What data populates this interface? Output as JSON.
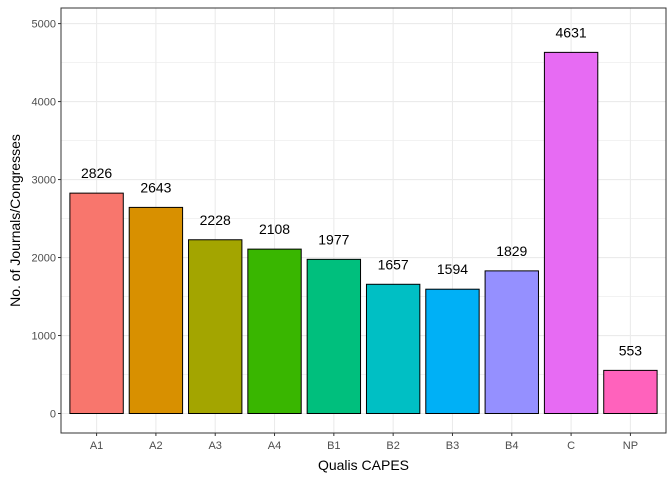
{
  "chart_data": {
    "type": "bar",
    "categories": [
      "A1",
      "A2",
      "A3",
      "A4",
      "B1",
      "B2",
      "B3",
      "B4",
      "C",
      "NP"
    ],
    "values": [
      2826,
      2643,
      2228,
      2108,
      1977,
      1657,
      1594,
      1829,
      4631,
      553
    ],
    "data_labels": [
      "2826",
      "2643",
      "2228",
      "2108",
      "1977",
      "1657",
      "1594",
      "1829",
      "4631",
      "553"
    ],
    "colors": [
      "#F8766D",
      "#D89000",
      "#A3A500",
      "#39B600",
      "#00BF7D",
      "#00BFC4",
      "#00B0F6",
      "#9590FF",
      "#E76BF3",
      "#FF62BC"
    ],
    "xlabel": "Qualis CAPES",
    "ylabel": "No. of Journals/Congresses",
    "y_ticks": [
      0,
      1000,
      2000,
      3000,
      4000,
      5000
    ],
    "y_tick_labels": [
      "0",
      "1000",
      "2000",
      "3000",
      "4000",
      "5000"
    ],
    "ylim": [
      -250,
      5200
    ],
    "grid": true,
    "legend": "none",
    "style": {
      "bar_outline": "#000000",
      "grid_color": "#ebebeb",
      "panel_border": "#333333"
    }
  }
}
